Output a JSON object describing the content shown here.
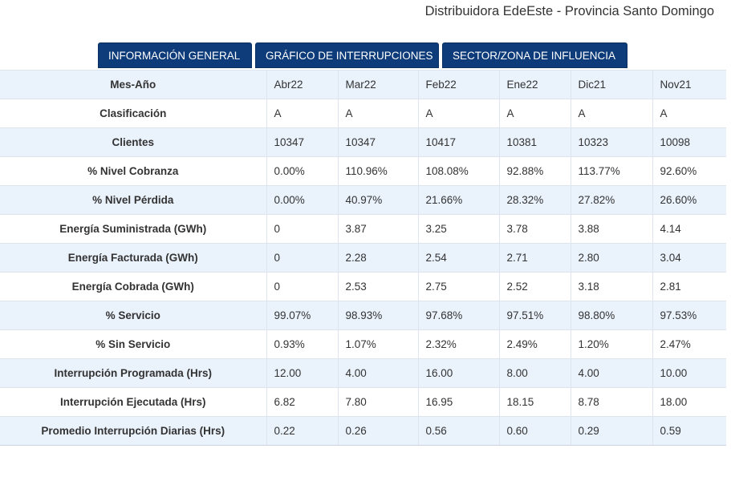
{
  "header": {
    "title": "Distribuidora EdeEste - Provincia Santo Domingo"
  },
  "tabs": [
    {
      "label": "INFORMACIÓN GENERAL"
    },
    {
      "label": "GRÁFICO DE INTERRUPCIONES"
    },
    {
      "label": "SECTOR/ZONA DE INFLUENCIA"
    }
  ],
  "table": {
    "rows": [
      {
        "label": "Mes-Año",
        "values": [
          "Abr22",
          "Mar22",
          "Feb22",
          "Ene22",
          "Dic21",
          "Nov21"
        ]
      },
      {
        "label": "Clasificación",
        "values": [
          "A",
          "A",
          "A",
          "A",
          "A",
          "A"
        ]
      },
      {
        "label": "Clientes",
        "values": [
          "10347",
          "10347",
          "10417",
          "10381",
          "10323",
          "10098"
        ]
      },
      {
        "label": "% Nivel Cobranza",
        "values": [
          "0.00%",
          "110.96%",
          "108.08%",
          "92.88%",
          "113.77%",
          "92.60%"
        ]
      },
      {
        "label": "% Nivel Pérdida",
        "values": [
          "0.00%",
          "40.97%",
          "21.66%",
          "28.32%",
          "27.82%",
          "26.60%"
        ]
      },
      {
        "label": "Energía Suministrada (GWh)",
        "values": [
          "0",
          "3.87",
          "3.25",
          "3.78",
          "3.88",
          "4.14"
        ]
      },
      {
        "label": "Energía Facturada (GWh)",
        "values": [
          "0",
          "2.28",
          "2.54",
          "2.71",
          "2.80",
          "3.04"
        ]
      },
      {
        "label": "Energía Cobrada (GWh)",
        "values": [
          "0",
          "2.53",
          "2.75",
          "2.52",
          "3.18",
          "2.81"
        ]
      },
      {
        "label": "% Servicio",
        "values": [
          "99.07%",
          "98.93%",
          "97.68%",
          "97.51%",
          "98.80%",
          "97.53%"
        ]
      },
      {
        "label": "% Sin Servicio",
        "values": [
          "0.93%",
          "1.07%",
          "2.32%",
          "2.49%",
          "1.20%",
          "2.47%"
        ]
      },
      {
        "label": "Interrupción Programada (Hrs)",
        "values": [
          "12.00",
          "4.00",
          "16.00",
          "8.00",
          "4.00",
          "10.00"
        ]
      },
      {
        "label": "Interrupción Ejecutada (Hrs)",
        "values": [
          "6.82",
          "7.80",
          "16.95",
          "18.15",
          "8.78",
          "18.00"
        ]
      },
      {
        "label": "Promedio Interrupción Diarias (Hrs)",
        "values": [
          "0.22",
          "0.26",
          "0.56",
          "0.60",
          "0.29",
          "0.59"
        ]
      }
    ]
  },
  "colors": {
    "tab_background": "#0e3c7a",
    "row_stripe": "#eaf2fc",
    "border": "#dde4ee"
  }
}
